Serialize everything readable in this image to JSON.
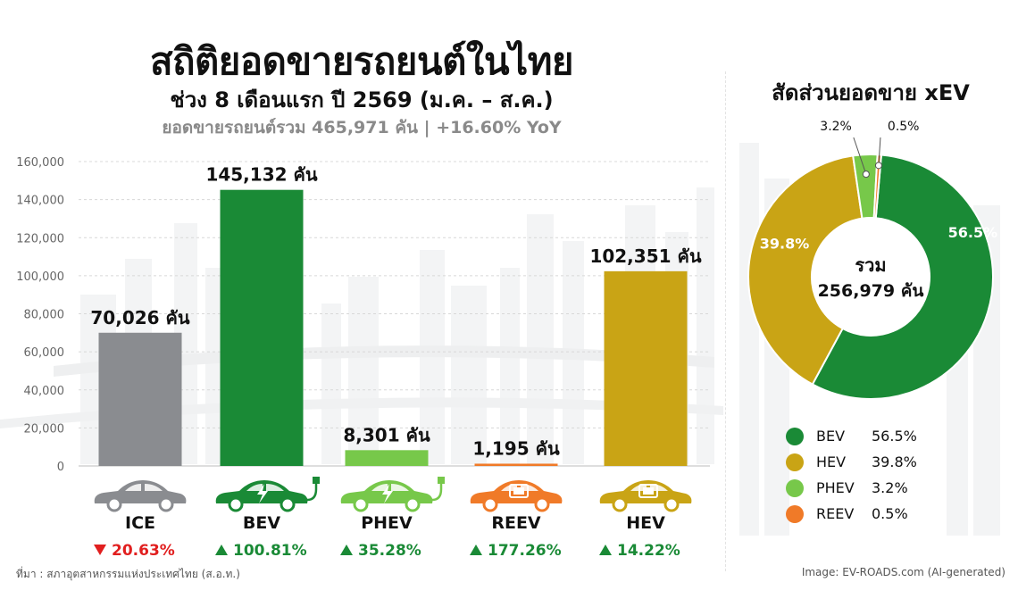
{
  "title": "สถิติยอดขายรถยนต์ในไทย",
  "subtitle": "ช่วง 8 เดือนแรก ปี 2569 (ม.ค. – ส.ค.)",
  "summary": "ยอดขายรถยนต์รวม 465,971 คัน  |  +16.60% YoY",
  "source": "ที่มา : สภาอุตสาหกรรมแห่งประเทศไทย (ส.อ.ท.)",
  "credit": "Image: EV-ROADS.com (AI-generated)",
  "chart_data": [
    {
      "type": "bar",
      "categories": [
        "ICE",
        "BEV",
        "PHEV",
        "REEV",
        "HEV"
      ],
      "values": [
        70026,
        145132,
        8301,
        1195,
        102351
      ],
      "data_labels": [
        "70,026 คัน",
        "145,132 คัน",
        "8,301 คัน",
        "1,195 คัน",
        "102,351 คัน"
      ],
      "yoy": [
        "20.63%",
        "100.81%",
        "35.28%",
        "177.26%",
        "14.22%"
      ],
      "yoy_direction": [
        "down",
        "up",
        "up",
        "up",
        "up"
      ],
      "colors": [
        "#8a8c90",
        "#1a8a36",
        "#77c84a",
        "#f07a28",
        "#c9a415"
      ],
      "icons": [
        "car-icon",
        "electric-car-plug-icon",
        "plug-in-hybrid-car-icon",
        "battery-car-icon",
        "hybrid-battery-car-icon"
      ],
      "ylim": [
        0,
        160000
      ],
      "yticks": [
        0,
        20000,
        40000,
        60000,
        80000,
        100000,
        120000,
        140000,
        160000
      ],
      "ytick_labels": [
        "0",
        "20,000",
        "40,000",
        "60,000",
        "80,000",
        "100,000",
        "120,000",
        "140,000",
        "160,000"
      ],
      "grid": true,
      "up_color": "#1a8a36",
      "down_color": "#e11f1f"
    },
    {
      "type": "pie",
      "title": "สัดส่วนยอดขาย xEV",
      "center_label": "รวม",
      "center_value": "256,979 คัน",
      "labels": [
        "BEV",
        "HEV",
        "PHEV",
        "REEV"
      ],
      "values": [
        56.5,
        39.8,
        3.2,
        0.5
      ],
      "value_labels": [
        "56.5%",
        "39.8%",
        "3.2%",
        "0.5%"
      ],
      "colors": [
        "#1a8a36",
        "#c9a415",
        "#77c84a",
        "#f07a28"
      ],
      "legend_position": "bottom"
    }
  ]
}
